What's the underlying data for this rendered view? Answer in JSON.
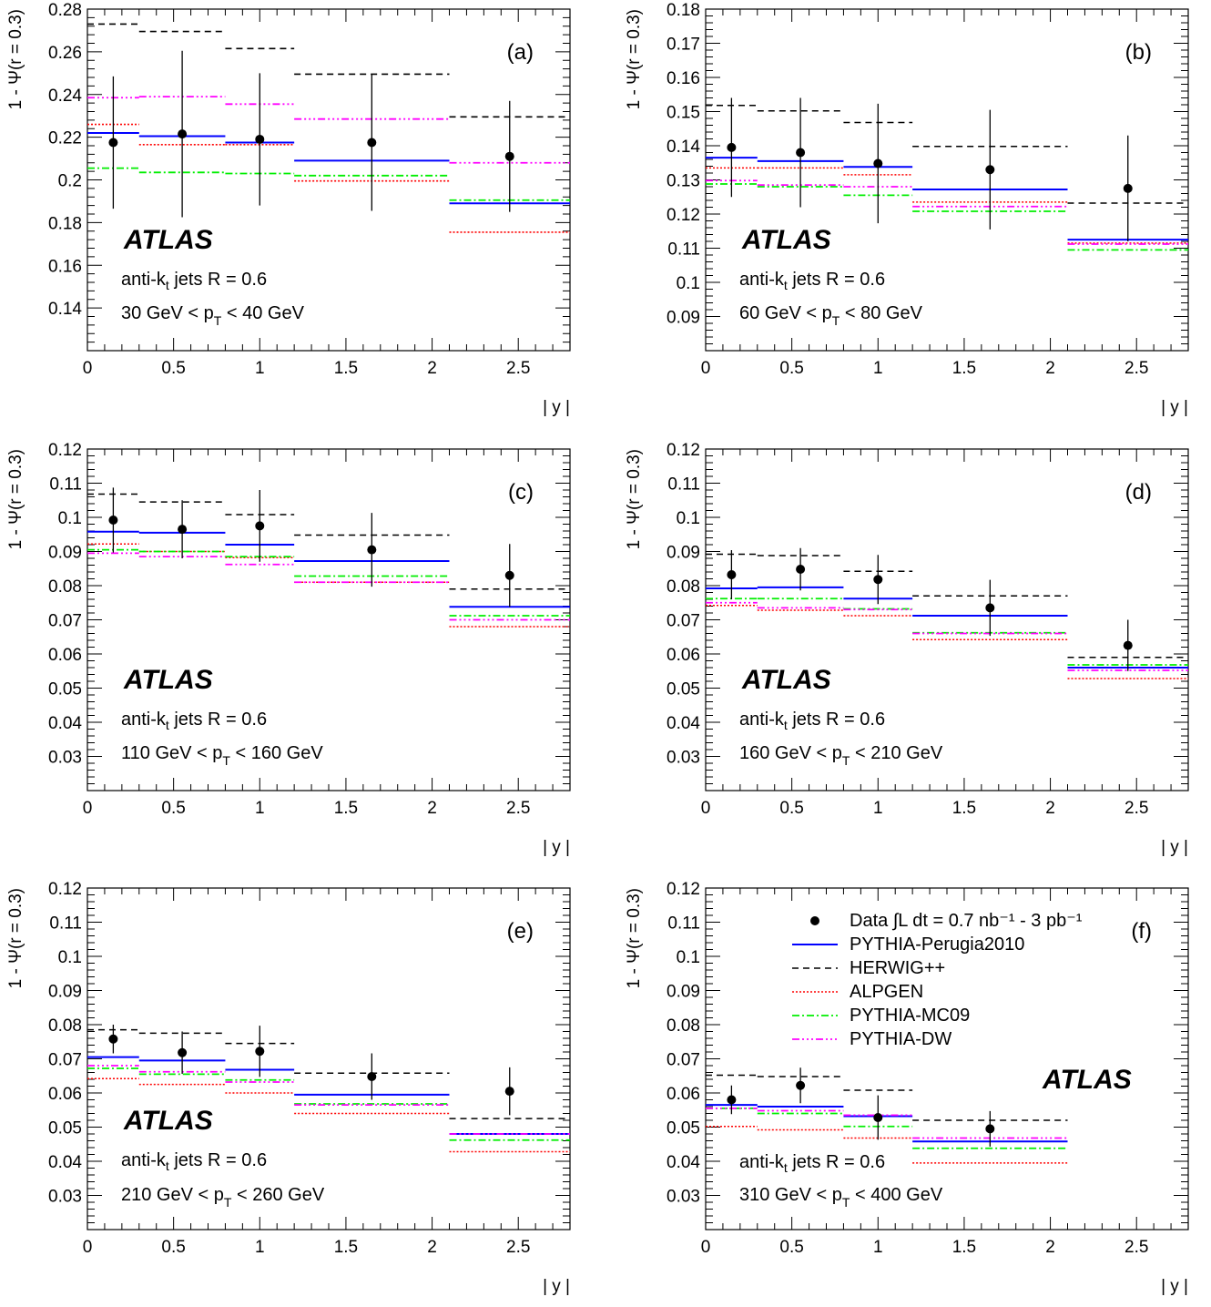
{
  "colors": {
    "pythia_perugia2010": "#0000ff",
    "herwig": "#000000",
    "alpgen": "#ff0000",
    "pythia_mc09": "#00ee00",
    "pythia_dw": "#ff00ff",
    "data": "#000000"
  },
  "common": {
    "ylabel": "1 - Ψ(r = 0.3)",
    "xlabel": "| y |",
    "atlas_label": "ATLAS",
    "jets_label": "anti-k",
    "jets_sub": "t",
    "jets_rest": " jets R = 0.6"
  },
  "legend": {
    "data_label": "Data ∫L dt = 0.7 nb⁻¹ - 3 pb⁻¹",
    "entries": [
      "PYTHIA-Perugia2010",
      "HERWIG++",
      "ALPGEN",
      "PYTHIA-MC09",
      "PYTHIA-DW"
    ]
  },
  "chart_data": [
    {
      "type": "scatter",
      "panel": "(a)",
      "pt_pre": "30 GeV < p",
      "pt_sub": "T",
      "pt_post": " < 40 GeV",
      "xlim": [
        0,
        2.8
      ],
      "ylim": [
        0.12,
        0.28
      ],
      "yticks": [
        "0.14",
        "0.16",
        "0.18",
        "0.2",
        "0.22",
        "0.24",
        "0.26",
        "0.28"
      ],
      "ytick_values": [
        0.14,
        0.16,
        0.18,
        0.2,
        0.22,
        0.24,
        0.26,
        0.28
      ],
      "bins": [
        [
          0,
          0.3
        ],
        [
          0.3,
          0.8
        ],
        [
          0.8,
          1.2
        ],
        [
          1.2,
          2.1
        ],
        [
          2.1,
          2.8
        ]
      ],
      "data": {
        "x": [
          0.15,
          0.55,
          1.0,
          1.65,
          2.45
        ],
        "y": [
          0.2175,
          0.2215,
          0.219,
          0.2175,
          0.211
        ],
        "err": [
          0.031,
          0.039,
          0.031,
          0.032,
          0.026
        ]
      },
      "series": [
        {
          "name": "PYTHIA-Perugia2010",
          "values": [
            0.222,
            0.2205,
            0.2175,
            0.209,
            0.189
          ]
        },
        {
          "name": "HERWIG++",
          "values": [
            0.273,
            0.2695,
            0.2615,
            0.2495,
            0.2295
          ]
        },
        {
          "name": "ALPGEN",
          "values": [
            0.226,
            0.2165,
            0.2165,
            0.1995,
            0.1755
          ]
        },
        {
          "name": "PYTHIA-MC09",
          "values": [
            0.2055,
            0.2035,
            0.203,
            0.202,
            0.1905
          ]
        },
        {
          "name": "PYTHIA-DW",
          "values": [
            0.2385,
            0.239,
            0.2355,
            0.2285,
            0.208
          ]
        }
      ]
    },
    {
      "type": "scatter",
      "panel": "(b)",
      "pt_pre": "60 GeV < p",
      "pt_sub": "T",
      "pt_post": " < 80 GeV",
      "xlim": [
        0,
        2.8
      ],
      "ylim": [
        0.08,
        0.18
      ],
      "yticks": [
        "0.09",
        "0.1",
        "0.11",
        "0.12",
        "0.13",
        "0.14",
        "0.15",
        "0.16",
        "0.17",
        "0.18"
      ],
      "ytick_values": [
        0.09,
        0.1,
        0.11,
        0.12,
        0.13,
        0.14,
        0.15,
        0.16,
        0.17,
        0.18
      ],
      "bins": [
        [
          0,
          0.3
        ],
        [
          0.3,
          0.8
        ],
        [
          0.8,
          1.2
        ],
        [
          1.2,
          2.1
        ],
        [
          2.1,
          2.8
        ]
      ],
      "data": {
        "x": [
          0.15,
          0.55,
          1.0,
          1.65,
          2.45
        ],
        "y": [
          0.1395,
          0.138,
          0.1348,
          0.133,
          0.1275
        ],
        "err": [
          0.0145,
          0.016,
          0.0175,
          0.0175,
          0.0155
        ]
      },
      "series": [
        {
          "name": "PYTHIA-Perugia2010",
          "values": [
            0.1365,
            0.1355,
            0.1338,
            0.1272,
            0.1125
          ]
        },
        {
          "name": "HERWIG++",
          "values": [
            0.1518,
            0.1502,
            0.1468,
            0.1398,
            0.1232
          ]
        },
        {
          "name": "ALPGEN",
          "values": [
            0.1335,
            0.1335,
            0.1315,
            0.1235,
            0.1115
          ]
        },
        {
          "name": "PYTHIA-MC09",
          "values": [
            0.1288,
            0.128,
            0.1255,
            0.1208,
            0.1095
          ]
        },
        {
          "name": "PYTHIA-DW",
          "values": [
            0.1298,
            0.1285,
            0.128,
            0.1222,
            0.1112
          ]
        }
      ]
    },
    {
      "type": "scatter",
      "panel": "(c)",
      "pt_pre": "110 GeV < p",
      "pt_sub": "T",
      "pt_post": " < 160 GeV",
      "xlim": [
        0,
        2.8
      ],
      "ylim": [
        0.02,
        0.12
      ],
      "yticks": [
        "0.03",
        "0.04",
        "0.05",
        "0.06",
        "0.07",
        "0.08",
        "0.09",
        "0.1",
        "0.11",
        "0.12"
      ],
      "ytick_values": [
        0.03,
        0.04,
        0.05,
        0.06,
        0.07,
        0.08,
        0.09,
        0.1,
        0.11,
        0.12
      ],
      "bins": [
        [
          0,
          0.3
        ],
        [
          0.3,
          0.8
        ],
        [
          0.8,
          1.2
        ],
        [
          1.2,
          2.1
        ],
        [
          2.1,
          2.8
        ]
      ],
      "data": {
        "x": [
          0.15,
          0.55,
          1.0,
          1.65,
          2.45
        ],
        "y": [
          0.0992,
          0.0965,
          0.0975,
          0.0905,
          0.083
        ],
        "err": [
          0.0095,
          0.0085,
          0.0105,
          0.0108,
          0.0092
        ]
      },
      "series": [
        {
          "name": "PYTHIA-Perugia2010",
          "values": [
            0.0958,
            0.0955,
            0.092,
            0.0872,
            0.0738
          ]
        },
        {
          "name": "HERWIG++",
          "values": [
            0.1068,
            0.1045,
            0.1008,
            0.0948,
            0.079
          ]
        },
        {
          "name": "ALPGEN",
          "values": [
            0.0922,
            0.09,
            0.0882,
            0.081,
            0.068
          ]
        },
        {
          "name": "PYTHIA-MC09",
          "values": [
            0.0905,
            0.09,
            0.0885,
            0.0828,
            0.0712
          ]
        },
        {
          "name": "PYTHIA-DW",
          "values": [
            0.0895,
            0.0885,
            0.0862,
            0.081,
            0.07
          ]
        }
      ]
    },
    {
      "type": "scatter",
      "panel": "(d)",
      "pt_pre": "160 GeV < p",
      "pt_sub": "T",
      "pt_post": " < 210 GeV",
      "xlim": [
        0,
        2.8
      ],
      "ylim": [
        0.02,
        0.12
      ],
      "yticks": [
        "0.03",
        "0.04",
        "0.05",
        "0.06",
        "0.07",
        "0.08",
        "0.09",
        "0.1",
        "0.11",
        "0.12"
      ],
      "ytick_values": [
        0.03,
        0.04,
        0.05,
        0.06,
        0.07,
        0.08,
        0.09,
        0.1,
        0.11,
        0.12
      ],
      "bins": [
        [
          0,
          0.3
        ],
        [
          0.3,
          0.8
        ],
        [
          0.8,
          1.2
        ],
        [
          1.2,
          2.1
        ],
        [
          2.1,
          2.8
        ]
      ],
      "data": {
        "x": [
          0.15,
          0.55,
          1.0,
          1.65,
          2.45
        ],
        "y": [
          0.0832,
          0.0848,
          0.0818,
          0.0735,
          0.0625
        ],
        "err": [
          0.0072,
          0.0062,
          0.0072,
          0.0082,
          0.0075
        ]
      },
      "series": [
        {
          "name": "PYTHIA-Perugia2010",
          "values": [
            0.0792,
            0.0795,
            0.0762,
            0.0712,
            0.056
          ]
        },
        {
          "name": "HERWIG++",
          "values": [
            0.0892,
            0.0888,
            0.0842,
            0.077,
            0.059
          ]
        },
        {
          "name": "ALPGEN",
          "values": [
            0.0742,
            0.0728,
            0.0712,
            0.0642,
            0.0528
          ]
        },
        {
          "name": "PYTHIA-MC09",
          "values": [
            0.0762,
            0.0762,
            0.0732,
            0.0662,
            0.0568
          ]
        },
        {
          "name": "PYTHIA-DW",
          "values": [
            0.075,
            0.0735,
            0.073,
            0.066,
            0.0552
          ]
        }
      ]
    },
    {
      "type": "scatter",
      "panel": "(e)",
      "pt_pre": "210 GeV < p",
      "pt_sub": "T",
      "pt_post": " < 260 GeV",
      "xlim": [
        0,
        2.8
      ],
      "ylim": [
        0.02,
        0.12
      ],
      "yticks": [
        "0.03",
        "0.04",
        "0.05",
        "0.06",
        "0.07",
        "0.08",
        "0.09",
        "0.1",
        "0.11",
        "0.12"
      ],
      "ytick_values": [
        0.03,
        0.04,
        0.05,
        0.06,
        0.07,
        0.08,
        0.09,
        0.1,
        0.11,
        0.12
      ],
      "bins": [
        [
          0,
          0.3
        ],
        [
          0.3,
          0.8
        ],
        [
          0.8,
          1.2
        ],
        [
          1.2,
          2.1
        ],
        [
          2.1,
          2.8
        ]
      ],
      "data": {
        "x": [
          0.15,
          0.55,
          1.0,
          1.65,
          2.45
        ],
        "y": [
          0.0758,
          0.0718,
          0.0722,
          0.0648,
          0.0605
        ],
        "err": [
          0.0042,
          0.0062,
          0.0075,
          0.0068,
          0.007
        ]
      },
      "series": [
        {
          "name": "PYTHIA-Perugia2010",
          "values": [
            0.0705,
            0.0695,
            0.0668,
            0.0595,
            0.048
          ]
        },
        {
          "name": "HERWIG++",
          "values": [
            0.0785,
            0.0775,
            0.0745,
            0.0658,
            0.0525
          ]
        },
        {
          "name": "ALPGEN",
          "values": [
            0.0642,
            0.0625,
            0.06,
            0.054,
            0.0428
          ]
        },
        {
          "name": "PYTHIA-MC09",
          "values": [
            0.0672,
            0.0655,
            0.0638,
            0.0568,
            0.0462
          ]
        },
        {
          "name": "PYTHIA-DW",
          "values": [
            0.068,
            0.0662,
            0.0632,
            0.0565,
            0.048
          ]
        }
      ]
    },
    {
      "type": "scatter",
      "panel": "(f)",
      "pt_pre": "310 GeV < p",
      "pt_sub": "T",
      "pt_post": " < 400 GeV",
      "xlim": [
        0,
        2.8
      ],
      "ylim": [
        0.02,
        0.12
      ],
      "yticks": [
        "0.03",
        "0.04",
        "0.05",
        "0.06",
        "0.07",
        "0.08",
        "0.09",
        "0.1",
        "0.11",
        "0.12"
      ],
      "ytick_values": [
        0.03,
        0.04,
        0.05,
        0.06,
        0.07,
        0.08,
        0.09,
        0.1,
        0.11,
        0.12
      ],
      "bins": [
        [
          0,
          0.3
        ],
        [
          0.3,
          0.8
        ],
        [
          0.8,
          1.2
        ],
        [
          1.2,
          2.1
        ]
      ],
      "data": {
        "x": [
          0.15,
          0.55,
          1.0,
          1.65
        ],
        "y": [
          0.058,
          0.0622,
          0.0528,
          0.0495
        ],
        "err": [
          0.0042,
          0.0052,
          0.0065,
          0.0052
        ]
      },
      "series": [
        {
          "name": "PYTHIA-Perugia2010",
          "values": [
            0.0565,
            0.056,
            0.0532,
            0.0458
          ]
        },
        {
          "name": "HERWIG++",
          "values": [
            0.0652,
            0.0648,
            0.0608,
            0.052
          ]
        },
        {
          "name": "ALPGEN",
          "values": [
            0.0502,
            0.0492,
            0.0468,
            0.0395
          ]
        },
        {
          "name": "PYTHIA-MC09",
          "values": [
            0.0555,
            0.054,
            0.0502,
            0.0438
          ]
        },
        {
          "name": "PYTHIA-DW",
          "values": [
            0.0555,
            0.0548,
            0.0535,
            0.0468
          ]
        }
      ]
    }
  ]
}
